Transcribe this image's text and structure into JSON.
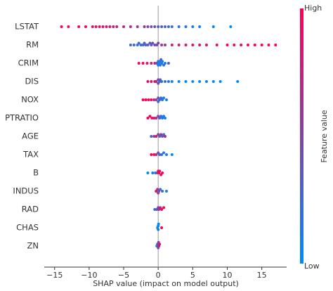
{
  "chart_data": {
    "type": "beeswarm",
    "xlabel": "SHAP value (impact on model output)",
    "colorbar_label": "Feature value",
    "colorbar_high": "High",
    "colorbar_low": "Low",
    "colormap": [
      "#008afb",
      "#ff0052"
    ],
    "xlim": [
      -16.5,
      18.6
    ],
    "xticks": [
      {
        "value": -15,
        "label": "−15"
      },
      {
        "value": -10,
        "label": "−10"
      },
      {
        "value": -5,
        "label": "−5"
      },
      0,
      5,
      10,
      15
    ],
    "series": [
      {
        "name": "LSTAT",
        "values": [
          -14,
          -13,
          -11.5,
          -10.5,
          -9.5,
          -9,
          -8.5,
          -8,
          -7.5,
          -7,
          -6.5,
          -6,
          -5,
          -4,
          -3,
          -2,
          -1.5,
          -1,
          -0.5,
          0,
          0.5,
          1,
          1.5,
          2,
          3,
          4,
          5,
          6,
          8,
          10.5
        ],
        "feature_values": [
          1,
          0.95,
          0.95,
          0.9,
          0.9,
          0.85,
          0.85,
          0.85,
          0.8,
          0.8,
          0.75,
          0.75,
          0.7,
          0.65,
          0.6,
          0.6,
          0.5,
          0.45,
          0.4,
          0.35,
          0.3,
          0.3,
          0.25,
          0.2,
          0.15,
          0.15,
          0.1,
          0.1,
          0.05,
          0
        ]
      },
      {
        "name": "RM",
        "values": [
          -4,
          -3.5,
          -3,
          -2.8,
          -2.5,
          -2.2,
          -2,
          -1.8,
          -1.5,
          -1.2,
          -1,
          -0.8,
          -0.5,
          -0.2,
          0,
          0.5,
          1,
          2,
          3,
          4,
          5,
          6,
          7,
          8.5,
          10,
          11,
          12,
          13,
          14,
          15,
          16,
          17
        ],
        "feature_values": [
          0.2,
          0.25,
          0.15,
          0.3,
          0.2,
          0.25,
          0.3,
          0.35,
          0.3,
          0.4,
          0.35,
          0.45,
          0.4,
          0.5,
          0.5,
          0.6,
          0.65,
          0.7,
          0.75,
          0.8,
          0.85,
          0.85,
          0.9,
          0.9,
          0.95,
          0.95,
          0.95,
          1,
          1,
          1,
          1,
          1
        ]
      },
      {
        "name": "CRIM",
        "values": [
          -2.8,
          -2.2,
          -1.6,
          -1,
          -0.5,
          -0.2,
          0,
          0,
          0.1,
          0.2,
          0.3,
          0.4,
          0.5,
          0.6,
          0.8,
          1,
          1.5
        ],
        "feature_values": [
          1,
          0.95,
          0.9,
          0.85,
          0.7,
          0.4,
          0.2,
          0.1,
          0.1,
          0.15,
          0.1,
          0.2,
          0.1,
          0.15,
          0.2,
          0.1,
          0.3
        ]
      },
      {
        "name": "DIS",
        "values": [
          -1.5,
          -1,
          -0.5,
          -0.3,
          0,
          0,
          0.2,
          0.3,
          0.5,
          1,
          1.5,
          2,
          3,
          4,
          5,
          6,
          7,
          8,
          9,
          11.5
        ],
        "feature_values": [
          0.9,
          0.85,
          0.8,
          0.7,
          0.5,
          0.4,
          0.3,
          0.3,
          0.2,
          0.2,
          0.1,
          0.05,
          0.05,
          0,
          0,
          0,
          0.05,
          0,
          0,
          0
        ]
      },
      {
        "name": "NOX",
        "values": [
          -2.2,
          -1.8,
          -1.4,
          -1,
          -0.6,
          -0.3,
          0,
          0,
          0.2,
          0.4,
          0.6,
          0.8,
          1.2
        ],
        "feature_values": [
          1,
          0.95,
          0.9,
          0.9,
          0.8,
          0.5,
          0.4,
          0.2,
          0.3,
          0.2,
          0.15,
          0.1,
          0.1
        ]
      },
      {
        "name": "PTRATIO",
        "values": [
          -1.5,
          -1.2,
          -0.9,
          -0.6,
          -0.3,
          0,
          0.2,
          0.4,
          0.6,
          0.8,
          1
        ],
        "feature_values": [
          1,
          0.95,
          0.9,
          0.85,
          0.7,
          0.5,
          0.3,
          0.2,
          0.15,
          0.1,
          0.05
        ]
      },
      {
        "name": "AGE",
        "values": [
          -1,
          -0.6,
          -0.3,
          0,
          0.2,
          0.4,
          0.6,
          0.8,
          1
        ],
        "feature_values": [
          0.3,
          0.6,
          0.8,
          0.5,
          0.3,
          0.6,
          0.4,
          0.2,
          0.7
        ]
      },
      {
        "name": "TAX",
        "values": [
          -1,
          -0.6,
          -0.3,
          0,
          0.2,
          0.5,
          0.8,
          1.2,
          2
        ],
        "feature_values": [
          1,
          0.9,
          0.7,
          0.4,
          0.3,
          0.2,
          0.1,
          0.1,
          0
        ]
      },
      {
        "name": "B",
        "values": [
          -1.5,
          -0.8,
          -0.4,
          -0.1,
          0,
          0.1,
          0.2,
          0.4,
          0.6
        ],
        "feature_values": [
          0,
          0.1,
          0.2,
          0.6,
          0.9,
          0.95,
          1,
          0.95,
          0.9
        ]
      },
      {
        "name": "INDUS",
        "values": [
          -0.3,
          -0.1,
          0,
          0.1,
          0.3,
          0.6,
          1.2
        ],
        "feature_values": [
          0.9,
          0.7,
          0.6,
          0.4,
          0.3,
          0.2,
          0.1
        ]
      },
      {
        "name": "RAD",
        "values": [
          -0.5,
          -0.2,
          0,
          0.1,
          0.3,
          0.5,
          0.8
        ],
        "feature_values": [
          0.2,
          0.4,
          0.5,
          0.6,
          0.8,
          0.9,
          1
        ]
      },
      {
        "name": "CHAS",
        "values": [
          -0.1,
          0,
          0,
          0.05,
          0.5
        ],
        "feature_values": [
          0,
          0,
          0.1,
          0,
          1
        ]
      },
      {
        "name": "ZN",
        "values": [
          -0.2,
          -0.1,
          0,
          0.05,
          0.1,
          0.2
        ],
        "feature_values": [
          0.2,
          0.3,
          0.4,
          0.5,
          0.7,
          0.9
        ]
      }
    ]
  }
}
